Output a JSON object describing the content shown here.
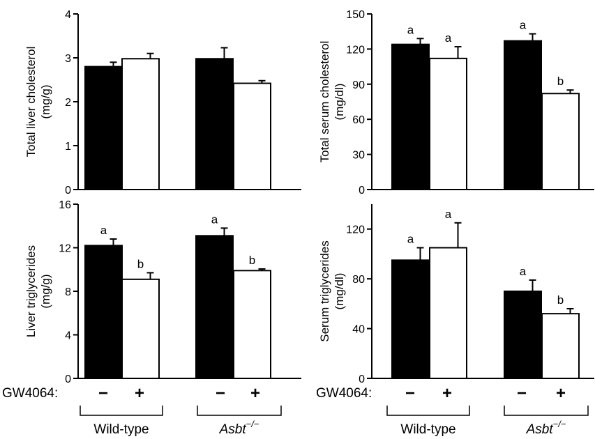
{
  "chart_data": [
    {
      "type": "bar",
      "ylabel": [
        "Total liver cholesterol",
        "(mg/g)"
      ],
      "ylim": [
        0,
        4
      ],
      "yticks": [
        "0",
        "1",
        "2",
        "3",
        "4"
      ],
      "bars": [
        {
          "value": 2.8,
          "err": 0.1,
          "fill": "black",
          "sig": ""
        },
        {
          "value": 2.98,
          "err": 0.12,
          "fill": "white",
          "sig": ""
        },
        {
          "value": 2.98,
          "err": 0.25,
          "fill": "black",
          "sig": ""
        },
        {
          "value": 2.42,
          "err": 0.06,
          "fill": "white",
          "sig": ""
        }
      ]
    },
    {
      "type": "bar",
      "ylabel": [
        "Total serum cholesterol",
        "(mg/dl)"
      ],
      "ylim": [
        0,
        150
      ],
      "yticks": [
        "0",
        "30",
        "60",
        "90",
        "120",
        "150"
      ],
      "bars": [
        {
          "value": 124,
          "err": 5,
          "fill": "black",
          "sig": "a"
        },
        {
          "value": 112,
          "err": 10,
          "fill": "white",
          "sig": "a"
        },
        {
          "value": 127,
          "err": 6,
          "fill": "black",
          "sig": "a"
        },
        {
          "value": 82,
          "err": 3,
          "fill": "white",
          "sig": "b"
        }
      ]
    },
    {
      "type": "bar",
      "ylabel": [
        "Liver triglycerides",
        "(mg/g)"
      ],
      "ylim": [
        0,
        16
      ],
      "yticks": [
        "0",
        "4",
        "8",
        "12",
        "16"
      ],
      "bars": [
        {
          "value": 12.2,
          "err": 0.6,
          "fill": "black",
          "sig": "a"
        },
        {
          "value": 9.1,
          "err": 0.6,
          "fill": "white",
          "sig": "b"
        },
        {
          "value": 13.1,
          "err": 0.7,
          "fill": "black",
          "sig": "a"
        },
        {
          "value": 9.9,
          "err": 0.15,
          "fill": "white",
          "sig": "b"
        }
      ]
    },
    {
      "type": "bar",
      "ylabel": [
        "Serum triglycerides",
        "(mg/dl)"
      ],
      "ylim": [
        0,
        140
      ],
      "yticks": [
        "0",
        "40",
        "80",
        "120"
      ],
      "bars": [
        {
          "value": 95,
          "err": 10,
          "fill": "black",
          "sig": "a"
        },
        {
          "value": 105,
          "err": 20,
          "fill": "white",
          "sig": "a"
        },
        {
          "value": 70,
          "err": 9,
          "fill": "black",
          "sig": "a"
        },
        {
          "value": 52,
          "err": 4,
          "fill": "white",
          "sig": "b"
        }
      ]
    }
  ],
  "treatment": {
    "label": "GW4064:",
    "minus": "−",
    "plus": "+"
  },
  "groups": {
    "wildtype": "Wild-type",
    "asbt": "Asbt",
    "asbt_sup": "−/−"
  }
}
